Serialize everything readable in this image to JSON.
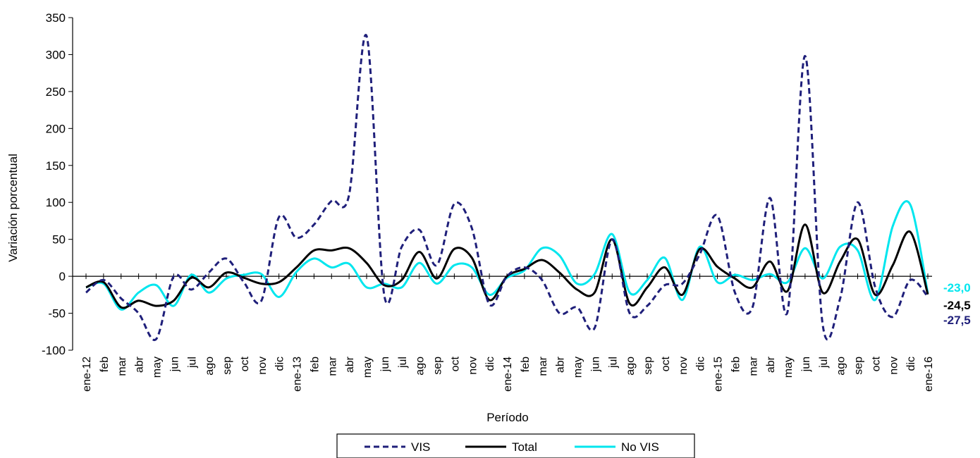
{
  "chart_data": {
    "type": "line",
    "title": "",
    "xlabel": "Período",
    "ylabel": "Variación porcentual",
    "ylim": [
      -100,
      350
    ],
    "yticks": [
      -100,
      -50,
      0,
      50,
      100,
      150,
      200,
      250,
      300,
      350
    ],
    "categories": [
      "ene-12",
      "feb",
      "mar",
      "abr",
      "may",
      "jun",
      "jul",
      "ago",
      "sep",
      "oct",
      "nov",
      "dic",
      "ene-13",
      "feb",
      "mar",
      "abr",
      "may",
      "jun",
      "jul",
      "ago",
      "sep",
      "oct",
      "nov",
      "dic",
      "ene-14",
      "feb",
      "mar",
      "abr",
      "may",
      "jun",
      "jul",
      "ago",
      "sep",
      "oct",
      "nov",
      "dic",
      "ene-15",
      "feb",
      "mar",
      "abr",
      "may",
      "jun",
      "jul",
      "ago",
      "sep",
      "oct",
      "nov",
      "dic",
      "ene-16"
    ],
    "legend_position": "bottom",
    "grid": false,
    "series": [
      {
        "name": "VIS",
        "color": "#1f1f7a",
        "style": "dashed",
        "values": [
          -22,
          -5,
          -30,
          -50,
          -85,
          0,
          -18,
          5,
          24,
          -8,
          -33,
          80,
          52,
          70,
          102,
          110,
          325,
          -25,
          40,
          63,
          15,
          98,
          65,
          -38,
          0,
          12,
          -5,
          -50,
          -42,
          -70,
          50,
          -50,
          -40,
          -12,
          -10,
          30,
          82,
          -22,
          -42,
          106,
          -48,
          298,
          -65,
          -30,
          100,
          -15,
          -55,
          -5,
          -27.5
        ]
      },
      {
        "name": "Total",
        "color": "#000000",
        "style": "solid",
        "values": [
          -15,
          -8,
          -42,
          -33,
          -40,
          -33,
          -2,
          -15,
          5,
          -2,
          -10,
          -8,
          12,
          35,
          35,
          38,
          18,
          -12,
          -5,
          33,
          -3,
          37,
          25,
          -32,
          0,
          10,
          22,
          5,
          -18,
          -22,
          50,
          -37,
          -15,
          12,
          -25,
          37,
          13,
          -3,
          -15,
          20,
          -20,
          70,
          -22,
          20,
          50,
          -25,
          15,
          60,
          -24.5
        ]
      },
      {
        "name": "No VIS",
        "color": "#00e6ee",
        "style": "solid",
        "values": [
          -15,
          -10,
          -45,
          -22,
          -12,
          -40,
          2,
          -22,
          -3,
          2,
          3,
          -28,
          6,
          24,
          12,
          17,
          -15,
          -10,
          -15,
          18,
          -10,
          15,
          12,
          -25,
          -2,
          8,
          38,
          28,
          -10,
          3,
          57,
          -22,
          -5,
          25,
          -32,
          40,
          -8,
          2,
          -5,
          3,
          -8,
          38,
          -3,
          40,
          35,
          -32,
          68,
          97,
          -23.0
        ]
      }
    ],
    "end_labels": [
      "-23,0",
      "-24,5",
      "-27,5"
    ]
  }
}
